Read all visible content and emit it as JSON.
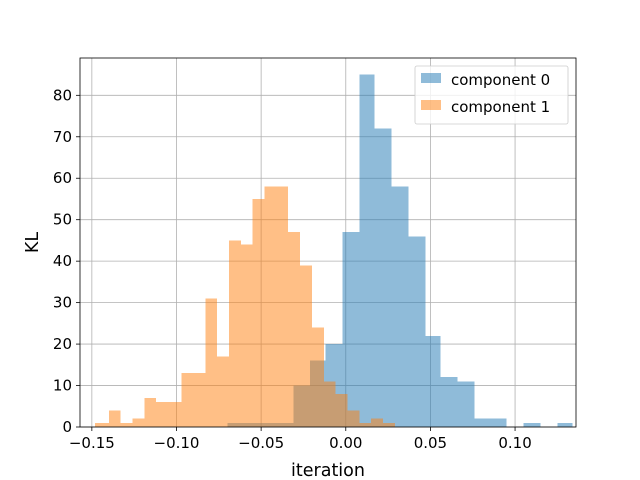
{
  "chart_data": {
    "type": "histogram",
    "title": "",
    "xlabel": "iteration",
    "ylabel": "KL",
    "xlim": [
      -0.157,
      0.136
    ],
    "ylim": [
      0,
      89
    ],
    "xticks": [
      -0.15,
      -0.1,
      -0.05,
      0.0,
      0.05,
      0.1
    ],
    "xtick_labels": [
      "−0.15",
      "−0.10",
      "−0.05",
      "0.00",
      "0.05",
      "0.10"
    ],
    "yticks": [
      0,
      10,
      20,
      30,
      40,
      50,
      60,
      70,
      80
    ],
    "ytick_labels": [
      "0",
      "10",
      "20",
      "30",
      "40",
      "50",
      "60",
      "70",
      "80"
    ],
    "grid": true,
    "legend_position": "top-right",
    "series": [
      {
        "name": "component 0",
        "color": "#1f77b4",
        "alpha": 0.5,
        "bins": [
          [
            -0.07,
            -0.06,
            1
          ],
          [
            -0.06,
            -0.051,
            1
          ],
          [
            -0.051,
            -0.041,
            1
          ],
          [
            -0.041,
            -0.031,
            1
          ],
          [
            -0.031,
            -0.021,
            10
          ],
          [
            -0.021,
            -0.012,
            16
          ],
          [
            -0.012,
            -0.002,
            20
          ],
          [
            -0.002,
            0.008,
            47
          ],
          [
            0.008,
            0.017,
            85
          ],
          [
            0.017,
            0.027,
            72
          ],
          [
            0.027,
            0.037,
            58
          ],
          [
            0.037,
            0.047,
            46
          ],
          [
            0.047,
            0.056,
            22
          ],
          [
            0.056,
            0.066,
            12
          ],
          [
            0.066,
            0.076,
            11
          ],
          [
            0.076,
            0.086,
            2
          ],
          [
            0.086,
            0.095,
            2
          ],
          [
            0.105,
            0.115,
            1
          ],
          [
            0.125,
            0.134,
            1
          ]
        ]
      },
      {
        "name": "component 1",
        "color": "#ff7f0e",
        "alpha": 0.5,
        "bins": [
          [
            -0.148,
            -0.14,
            1
          ],
          [
            -0.14,
            -0.133,
            4
          ],
          [
            -0.133,
            -0.126,
            1
          ],
          [
            -0.126,
            -0.119,
            2
          ],
          [
            -0.119,
            -0.112,
            7
          ],
          [
            -0.112,
            -0.104,
            6
          ],
          [
            -0.104,
            -0.097,
            6
          ],
          [
            -0.097,
            -0.09,
            13
          ],
          [
            -0.09,
            -0.083,
            13
          ],
          [
            -0.083,
            -0.076,
            31
          ],
          [
            -0.076,
            -0.069,
            17
          ],
          [
            -0.069,
            -0.062,
            45
          ],
          [
            -0.062,
            -0.055,
            44
          ],
          [
            -0.055,
            -0.048,
            55
          ],
          [
            -0.048,
            -0.041,
            58
          ],
          [
            -0.041,
            -0.034,
            58
          ],
          [
            -0.034,
            -0.027,
            47
          ],
          [
            -0.027,
            -0.02,
            39
          ],
          [
            -0.02,
            -0.013,
            24
          ],
          [
            -0.013,
            -0.006,
            11
          ],
          [
            -0.006,
            0.001,
            8
          ],
          [
            0.001,
            0.008,
            4
          ],
          [
            0.008,
            0.015,
            1
          ],
          [
            0.015,
            0.022,
            2
          ],
          [
            0.022,
            0.029,
            1
          ]
        ]
      }
    ]
  }
}
